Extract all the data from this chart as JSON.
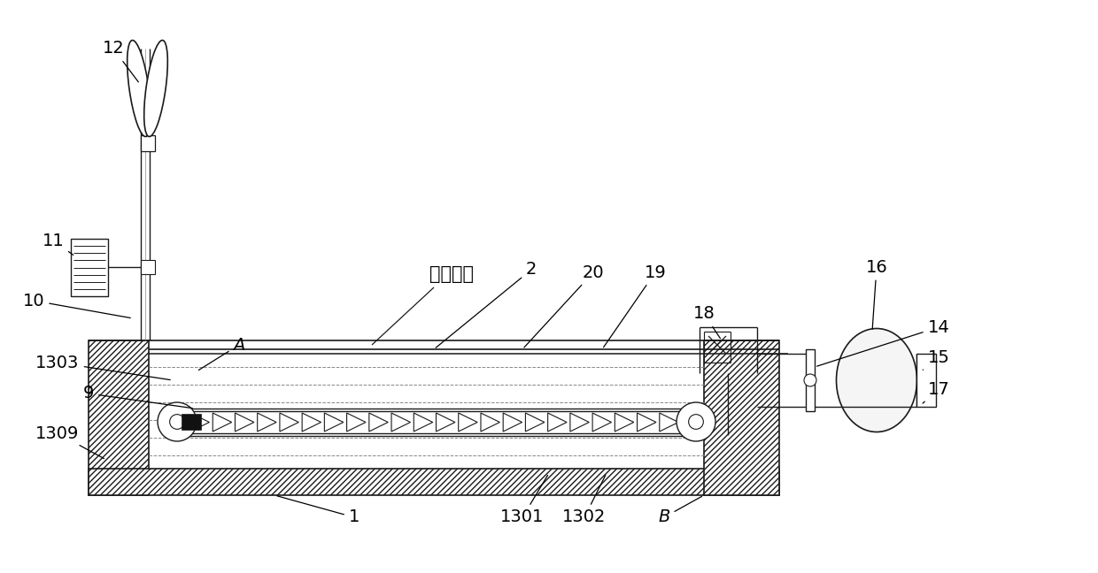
{
  "bg_color": "#ffffff",
  "line_color": "#1a1a1a",
  "figsize": [
    12.4,
    6.48
  ],
  "dpi": 100,
  "fanghu_text": "防护镜片",
  "xlim": [
    0,
    1240
  ],
  "ylim": [
    0,
    648
  ]
}
